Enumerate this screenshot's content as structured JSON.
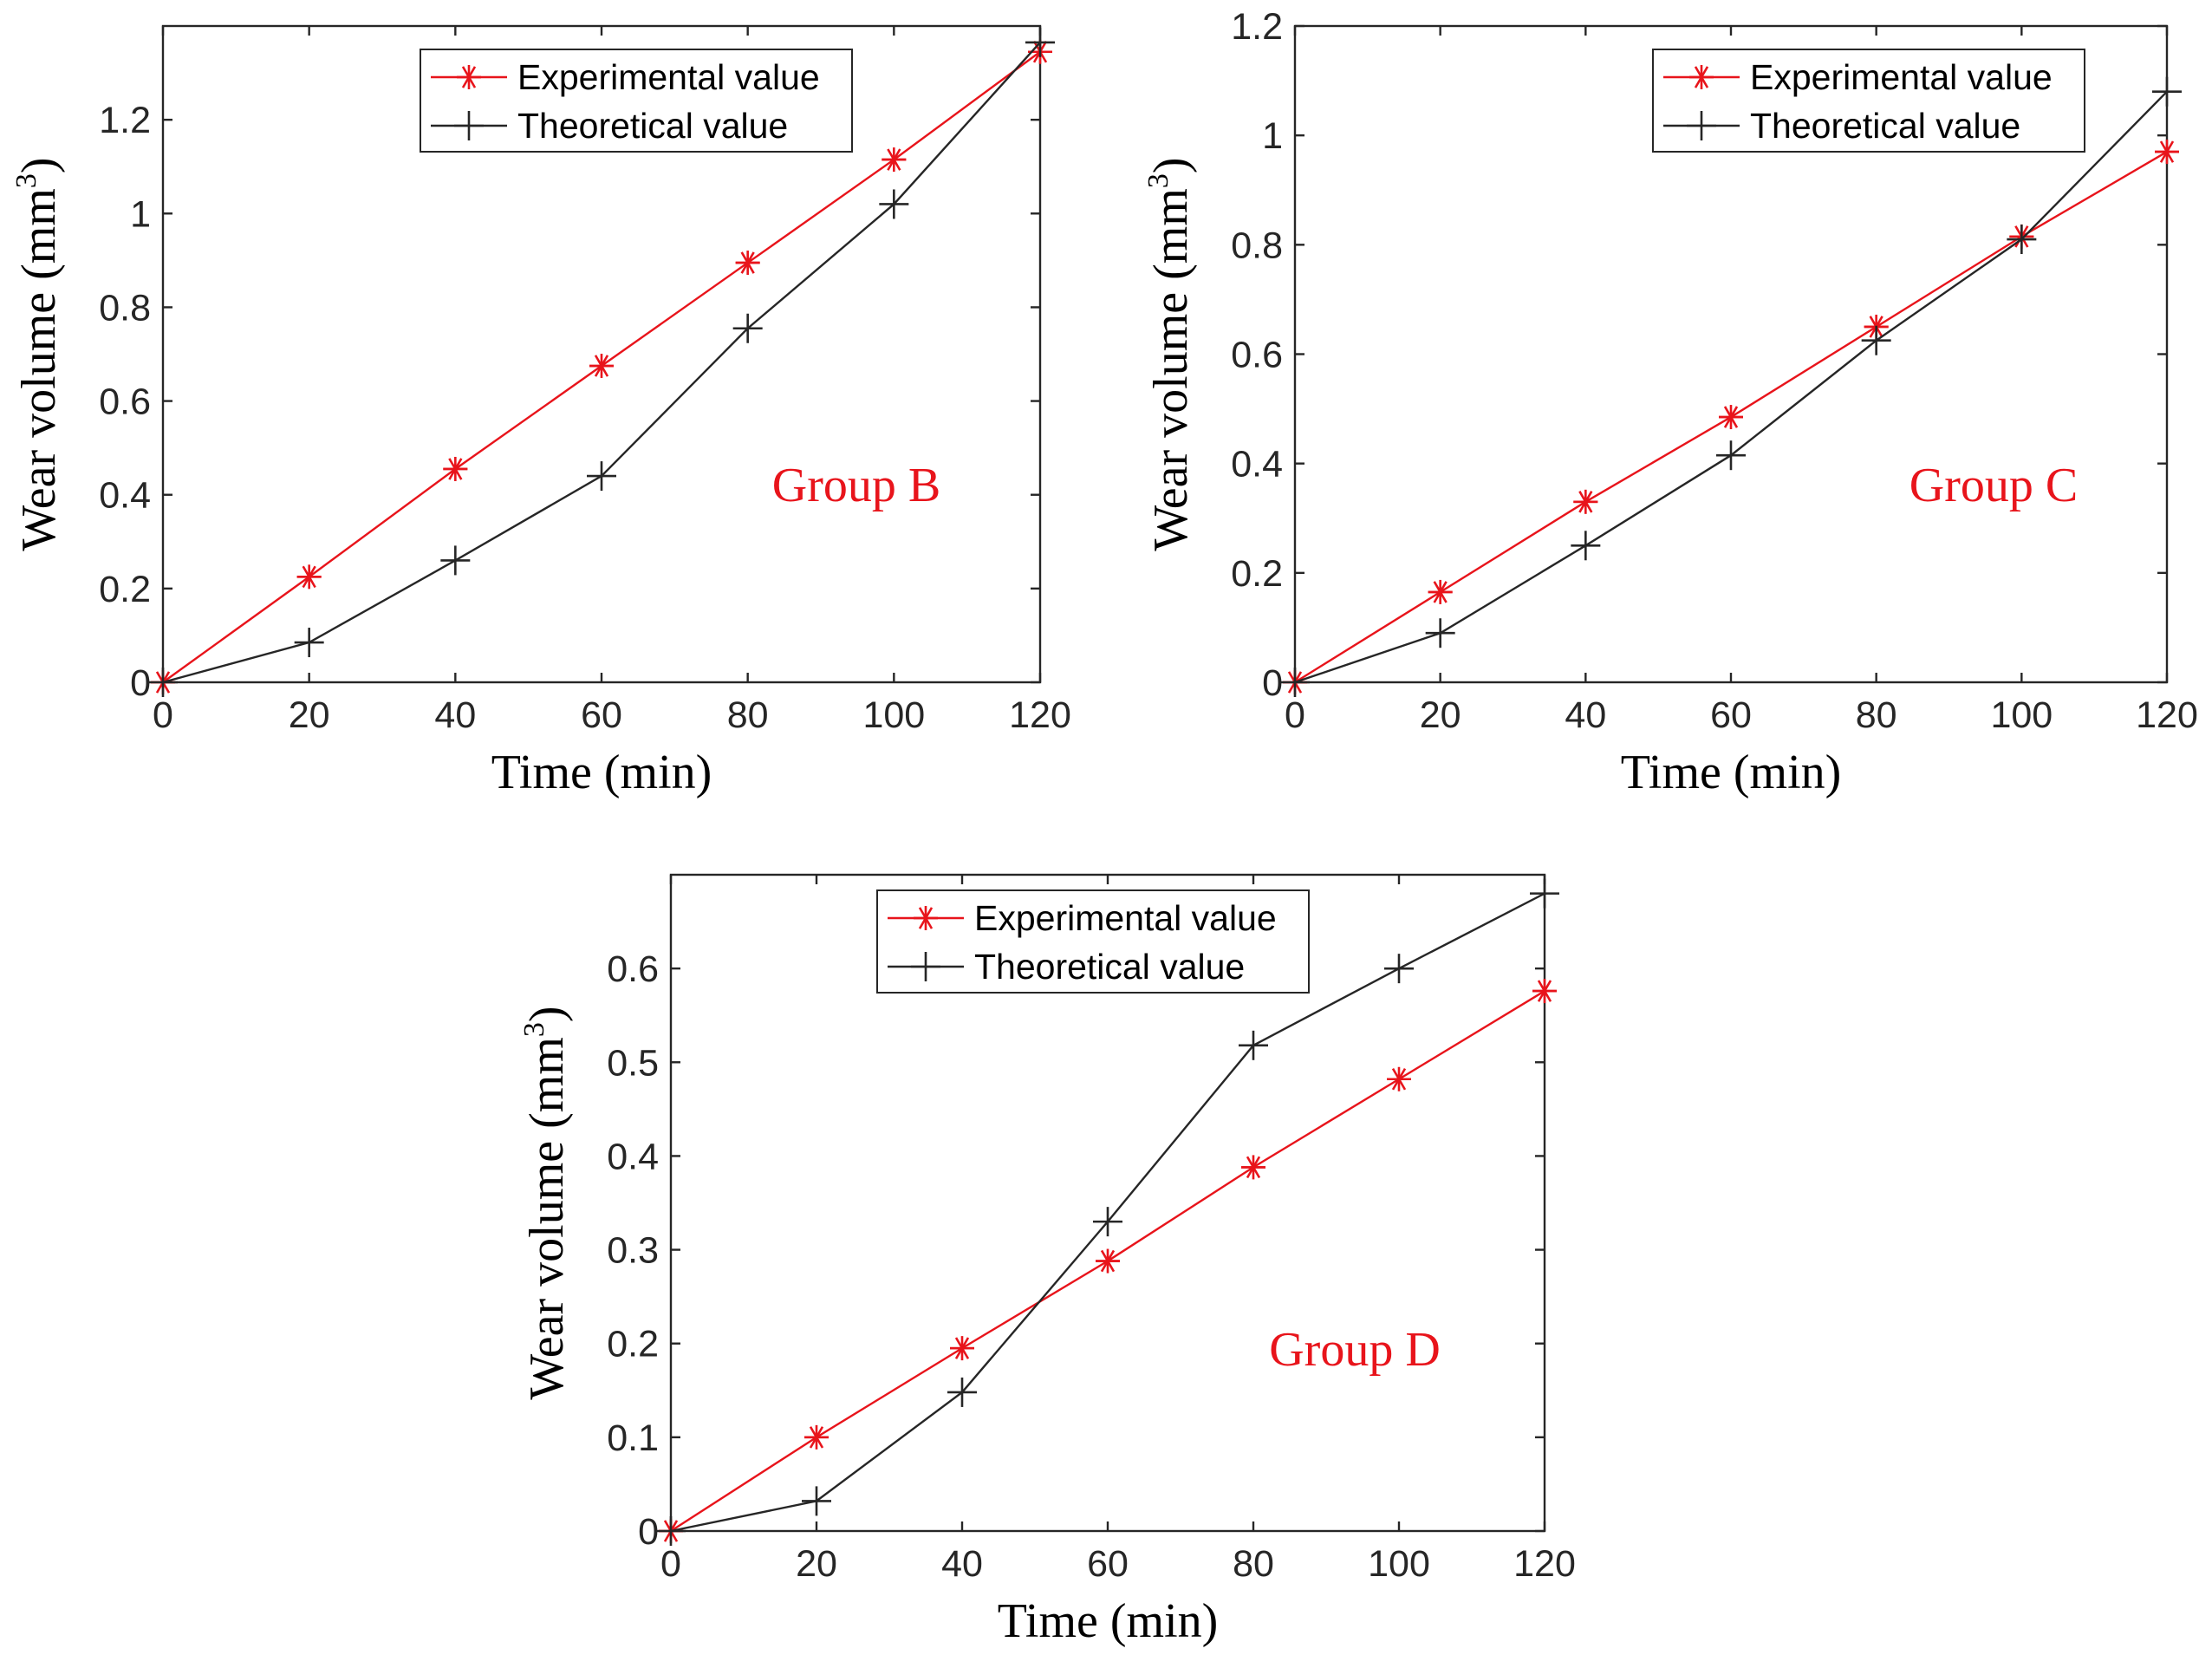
{
  "chart_data": [
    {
      "type": "line",
      "title": "",
      "annotation": "Group B",
      "xlabel": "Time (min)",
      "ylabel_main": "Wear volume (mm",
      "ylabel_sup": "3",
      "ylabel_close": ")",
      "xlim": [
        0,
        120
      ],
      "ylim": [
        0,
        1.4
      ],
      "xticks": [
        0,
        20,
        40,
        60,
        80,
        100,
        120
      ],
      "xtick_labels": [
        "0",
        "20",
        "40",
        "60",
        "80",
        "100",
        "120"
      ],
      "yticks": [
        0,
        0.2,
        0.4,
        0.6,
        0.8,
        1.0,
        1.2
      ],
      "ytick_labels": [
        "0",
        "0.2",
        "0.4",
        "0.6",
        "0.8",
        "1",
        "1.2"
      ],
      "legend": "top",
      "x": [
        0,
        20,
        40,
        60,
        80,
        100,
        120
      ],
      "series": [
        {
          "name": "Experimental value",
          "marker": "asterisk",
          "color": "#e8141b",
          "values": [
            0,
            0.225,
            0.455,
            0.675,
            0.895,
            1.115,
            1.345
          ]
        },
        {
          "name": "Theoretical value",
          "marker": "plus",
          "color": "#262626",
          "values": [
            0,
            0.085,
            0.26,
            0.44,
            0.755,
            1.02,
            1.365
          ]
        }
      ]
    },
    {
      "type": "line",
      "title": "",
      "annotation": "Group C",
      "xlabel": "Time (min)",
      "ylabel_main": "Wear volume (mm",
      "ylabel_sup": "3",
      "ylabel_close": ")",
      "xlim": [
        0,
        120
      ],
      "ylim": [
        0,
        1.2
      ],
      "xticks": [
        0,
        20,
        40,
        60,
        80,
        100,
        120
      ],
      "xtick_labels": [
        "0",
        "20",
        "40",
        "60",
        "80",
        "100",
        "120"
      ],
      "yticks": [
        0,
        0.2,
        0.4,
        0.6,
        0.8,
        1.0,
        1.2
      ],
      "ytick_labels": [
        "0",
        "0.2",
        "0.4",
        "0.6",
        "0.8",
        "1",
        "1.2"
      ],
      "legend": "top",
      "x": [
        0,
        20,
        40,
        60,
        80,
        100,
        120
      ],
      "series": [
        {
          "name": "Experimental value",
          "marker": "asterisk",
          "color": "#e8141b",
          "values": [
            0,
            0.165,
            0.33,
            0.485,
            0.65,
            0.815,
            0.97
          ]
        },
        {
          "name": "Theoretical value",
          "marker": "plus",
          "color": "#262626",
          "values": [
            0,
            0.09,
            0.25,
            0.415,
            0.625,
            0.81,
            1.08
          ]
        }
      ]
    },
    {
      "type": "line",
      "title": "",
      "annotation": "Group D",
      "xlabel": "Time (min)",
      "ylabel_main": "Wear volume (mm",
      "ylabel_sup": "3",
      "ylabel_close": ")",
      "xlim": [
        0,
        120
      ],
      "ylim": [
        0,
        0.7
      ],
      "xticks": [
        0,
        20,
        40,
        60,
        80,
        100,
        120
      ],
      "xtick_labels": [
        "0",
        "20",
        "40",
        "60",
        "80",
        "100",
        "120"
      ],
      "yticks": [
        0,
        0.1,
        0.2,
        0.3,
        0.4,
        0.5,
        0.6
      ],
      "ytick_labels": [
        "0",
        "0.1",
        "0.2",
        "0.3",
        "0.4",
        "0.5",
        "0.6"
      ],
      "legend": "top",
      "x": [
        0,
        20,
        40,
        60,
        80,
        100,
        120
      ],
      "series": [
        {
          "name": "Experimental value",
          "marker": "asterisk",
          "color": "#e8141b",
          "values": [
            0,
            0.1,
            0.195,
            0.288,
            0.388,
            0.482,
            0.576
          ]
        },
        {
          "name": "Theoretical value",
          "marker": "plus",
          "color": "#262626",
          "values": [
            0,
            0.032,
            0.148,
            0.33,
            0.518,
            0.6,
            0.68
          ]
        }
      ]
    }
  ],
  "colors": {
    "experimental": "#e8141b",
    "theoretical": "#262626",
    "annotation": "#e8141b"
  }
}
